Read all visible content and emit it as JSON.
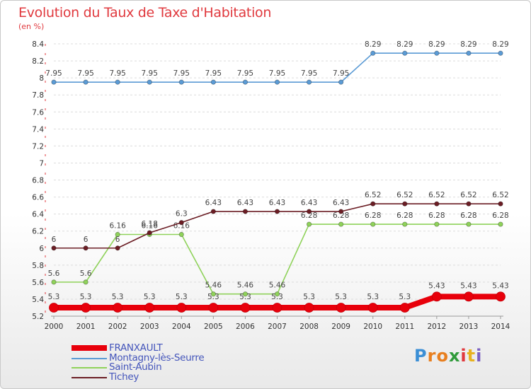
{
  "chart_data": {
    "type": "line",
    "title": "Evolution du Taux de Taxe d'Habitation",
    "subtitle": "(en %)",
    "x": [
      "2000",
      "2001",
      "2002",
      "2003",
      "2004",
      "2005",
      "2006",
      "2007",
      "2008",
      "2009",
      "2010",
      "2011",
      "2012",
      "2013",
      "2014"
    ],
    "ylim": [
      5.2,
      8.4
    ],
    "yticks": [
      5.2,
      5.4,
      5.6,
      5.8,
      6,
      6.2,
      6.4,
      6.6,
      6.8,
      7,
      7.2,
      7.4,
      7.6,
      7.8,
      8,
      8.2,
      8.4
    ],
    "grid": true,
    "legend_position": "bottom-left",
    "series": [
      {
        "name": "FRANXAULT",
        "color": "#e8000b",
        "thick": true,
        "values": [
          5.3,
          5.3,
          5.3,
          5.3,
          5.3,
          5.3,
          5.3,
          5.3,
          5.3,
          5.3,
          5.3,
          5.3,
          5.43,
          5.43,
          5.43
        ]
      },
      {
        "name": "Montagny-lès-Seurre",
        "color": "#5b9bd5",
        "thick": false,
        "values": [
          7.95,
          7.95,
          7.95,
          7.95,
          7.95,
          7.95,
          7.95,
          7.95,
          7.95,
          7.95,
          8.29,
          8.29,
          8.29,
          8.29,
          8.29
        ]
      },
      {
        "name": "Saint-Aubin",
        "color": "#8fd25a",
        "thick": false,
        "values": [
          5.6,
          5.6,
          6.16,
          6.16,
          6.16,
          5.46,
          5.46,
          5.46,
          6.28,
          6.28,
          6.28,
          6.28,
          6.28,
          6.28,
          6.28
        ]
      },
      {
        "name": "Tichey",
        "color": "#6b1d24",
        "thick": false,
        "values": [
          6,
          6,
          6,
          6.18,
          6.3,
          6.43,
          6.43,
          6.43,
          6.43,
          6.43,
          6.52,
          6.52,
          6.52,
          6.52,
          6.52
        ]
      }
    ]
  },
  "brand": {
    "letters": [
      "P",
      "r",
      "o",
      "x",
      "i",
      "t",
      "i"
    ],
    "colors": [
      "#3b8fd6",
      "#e87f1f",
      "#e87f1f",
      "#2f9a3a",
      "#e0393e",
      "#e8b21f",
      "#7a5fc0"
    ]
  }
}
